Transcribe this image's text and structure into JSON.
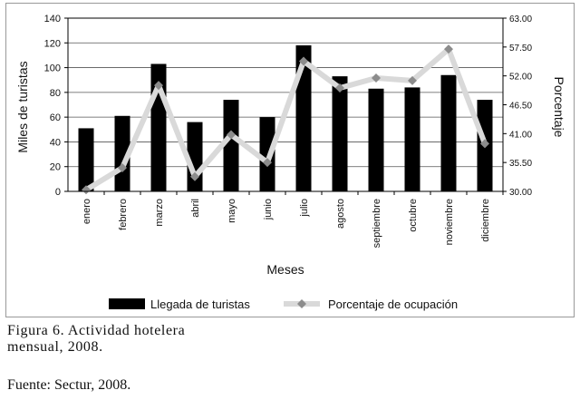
{
  "chart_data": {
    "type": "bar+line",
    "categories": [
      "enero",
      "febrero",
      "marzo",
      "abril",
      "mayo",
      "junio",
      "julio",
      "agosto",
      "septiembre",
      "octubre",
      "noviembre",
      "diciembre"
    ],
    "series": [
      {
        "name": "Llegada de turistas",
        "type": "bar",
        "axis": "left",
        "color": "#000000",
        "values": [
          51,
          61,
          103,
          56,
          74,
          60,
          118,
          93,
          83,
          84,
          94,
          74
        ]
      },
      {
        "name": "Porcentaje de ocupación",
        "type": "line",
        "axis": "right",
        "color": "#d9d9d9",
        "marker_color": "#8c8c8c",
        "values": [
          30.3,
          34.5,
          50.2,
          32.8,
          40.8,
          35.5,
          54.8,
          49.7,
          51.6,
          51.1,
          57.1,
          39.1
        ]
      }
    ],
    "xlabel": "Meses",
    "ylabel_left": "Miles de turistas",
    "ylabel_right": "Porcentaje",
    "ylim_left": [
      0,
      140
    ],
    "yticks_left": [
      "0",
      "20",
      "40",
      "60",
      "80",
      "100",
      "120",
      "140"
    ],
    "ylim_right": [
      30,
      63
    ],
    "yticks_right": [
      "30.00",
      "35.50",
      "41.00",
      "46.50",
      "52.00",
      "57.50",
      "63.00"
    ],
    "legend_position": "bottom"
  },
  "caption": {
    "figure": "Figura 6. Actividad hotelera mensual, 2008.",
    "source": "Fuente: Sectur, 2008."
  }
}
